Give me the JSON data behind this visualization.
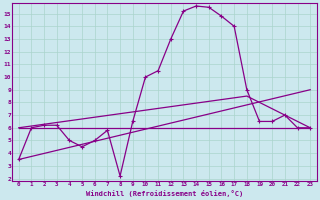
{
  "xlabel": "Windchill (Refroidissement éolien,°C)",
  "xlim": [
    -0.5,
    23.5
  ],
  "ylim": [
    1.8,
    15.8
  ],
  "xticks": [
    0,
    1,
    2,
    3,
    4,
    5,
    6,
    7,
    8,
    9,
    10,
    11,
    12,
    13,
    14,
    15,
    16,
    17,
    18,
    19,
    20,
    21,
    22,
    23
  ],
  "yticks": [
    2,
    3,
    4,
    5,
    6,
    7,
    8,
    9,
    10,
    11,
    12,
    13,
    14,
    15
  ],
  "bg_color": "#cce8ee",
  "line_color": "#880088",
  "grid_color": "#aad4cc",
  "curve": [
    [
      0,
      3.5
    ],
    [
      1,
      6.0
    ],
    [
      2,
      6.2
    ],
    [
      3,
      6.2
    ],
    [
      4,
      5.0
    ],
    [
      5,
      4.5
    ],
    [
      6,
      5.0
    ],
    [
      7,
      5.8
    ],
    [
      8,
      2.2
    ],
    [
      9,
      6.5
    ],
    [
      10,
      10.0
    ],
    [
      11,
      10.5
    ],
    [
      12,
      13.0
    ],
    [
      13,
      15.2
    ],
    [
      14,
      15.6
    ],
    [
      15,
      15.5
    ],
    [
      16,
      14.8
    ],
    [
      17,
      14.0
    ],
    [
      18,
      9.0
    ],
    [
      19,
      6.5
    ],
    [
      20,
      6.5
    ],
    [
      21,
      7.0
    ],
    [
      22,
      6.0
    ],
    [
      23,
      6.0
    ]
  ],
  "line_flat": [
    [
      0,
      6.0
    ],
    [
      23,
      6.0
    ]
  ],
  "line_diag1": [
    [
      0,
      3.5
    ],
    [
      23,
      9.0
    ]
  ],
  "line_diag2": [
    [
      0,
      6.0
    ],
    [
      18,
      8.5
    ],
    [
      23,
      6.0
    ]
  ]
}
